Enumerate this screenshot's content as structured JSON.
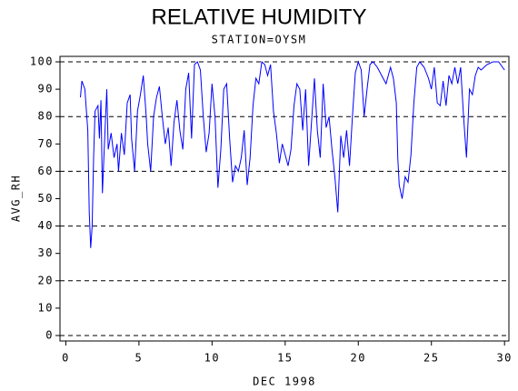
{
  "chart_data": {
    "type": "line",
    "title": "RELATIVE HUMIDITY",
    "subtitle": "STATION=OYSM",
    "x_label": "DEC 1998",
    "y_label": "AVG_RH",
    "xlim": [
      -0.4,
      30.3
    ],
    "ylim": [
      -2,
      102
    ],
    "xticks": [
      0,
      5,
      10,
      15,
      20,
      25,
      30
    ],
    "yticks": [
      0,
      10,
      20,
      30,
      40,
      50,
      60,
      70,
      80,
      90,
      100
    ],
    "grid_lines": [
      0,
      20,
      40,
      60,
      80,
      100
    ],
    "series": [
      {
        "color": "#0000ff",
        "x": [
          1.0,
          1.1,
          1.3,
          1.5,
          1.6,
          1.7,
          1.8,
          1.9,
          2.0,
          2.2,
          2.3,
          2.4,
          2.5,
          2.6,
          2.8,
          2.9,
          3.1,
          3.3,
          3.5,
          3.6,
          3.8,
          4.0,
          4.2,
          4.4,
          4.5,
          4.7,
          4.9,
          5.1,
          5.3,
          5.5,
          5.6,
          5.8,
          6.0,
          6.2,
          6.4,
          6.6,
          6.8,
          7.0,
          7.2,
          7.4,
          7.6,
          7.8,
          8.0,
          8.2,
          8.4,
          8.6,
          8.8,
          9.0,
          9.2,
          9.4,
          9.6,
          9.8,
          10.0,
          10.2,
          10.4,
          10.6,
          10.8,
          11.0,
          11.2,
          11.4,
          11.6,
          11.8,
          12.0,
          12.2,
          12.4,
          12.6,
          12.8,
          13.0,
          13.2,
          13.4,
          13.6,
          13.8,
          14.0,
          14.2,
          14.4,
          14.6,
          14.8,
          15.0,
          15.2,
          15.4,
          15.6,
          15.8,
          16.0,
          16.2,
          16.4,
          16.6,
          16.8,
          17.0,
          17.2,
          17.4,
          17.6,
          17.8,
          18.0,
          18.2,
          18.4,
          18.6,
          18.8,
          19.0,
          19.2,
          19.4,
          19.6,
          19.8,
          20.0,
          20.2,
          20.4,
          20.6,
          20.8,
          21.0,
          21.3,
          21.6,
          21.9,
          22.2,
          22.4,
          22.6,
          22.7,
          22.8,
          23.0,
          23.2,
          23.4,
          23.6,
          23.8,
          24.0,
          24.2,
          24.5,
          24.8,
          25.0,
          25.2,
          25.4,
          25.6,
          25.8,
          26.0,
          26.2,
          26.4,
          26.6,
          26.8,
          27.0,
          27.2,
          27.4,
          27.6,
          27.8,
          28.0,
          28.2,
          28.4,
          28.8,
          29.2,
          29.6,
          30.0
        ],
        "values": [
          87,
          93,
          90,
          75,
          45,
          32,
          40,
          65,
          82,
          84,
          72,
          86,
          52,
          65,
          90,
          68,
          74,
          65,
          70,
          60,
          74,
          66,
          85,
          88,
          72,
          60,
          82,
          88,
          95,
          80,
          70,
          60,
          80,
          87,
          91,
          80,
          70,
          76,
          62,
          78,
          86,
          75,
          68,
          90,
          96,
          72,
          99,
          100,
          97,
          80,
          67,
          74,
          92,
          80,
          54,
          68,
          90,
          92,
          72,
          56,
          62,
          60,
          65,
          75,
          55,
          65,
          84,
          94,
          92,
          100,
          99,
          95,
          99,
          82,
          74,
          63,
          70,
          66,
          62,
          68,
          84,
          92,
          90,
          75,
          90,
          62,
          78,
          94,
          75,
          65,
          92,
          76,
          80,
          68,
          58,
          45,
          73,
          65,
          75,
          62,
          80,
          96,
          100,
          97,
          80,
          90,
          99,
          100,
          98,
          95,
          92,
          98,
          94,
          85,
          65,
          55,
          50,
          58,
          56,
          66,
          85,
          98,
          100,
          98,
          94,
          90,
          98,
          85,
          84,
          93,
          84,
          95,
          92,
          98,
          92,
          98,
          80,
          65,
          90,
          88,
          95,
          98,
          97,
          99,
          100,
          100,
          97
        ]
      }
    ]
  }
}
